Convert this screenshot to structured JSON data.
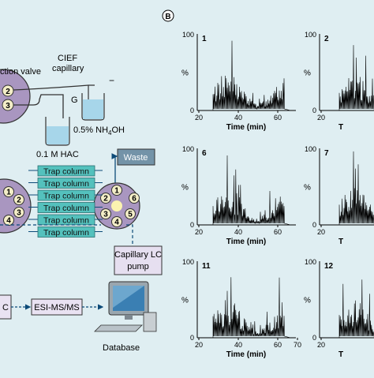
{
  "panel_b": {
    "label": "B"
  },
  "cief": {
    "valve_label": "ction valve",
    "capillary_label_1": "CIEF",
    "capillary_label_2": "capillary",
    "minus": "−",
    "g_label": "G",
    "acid_label": "0.1 M HAC",
    "base_label": "0.5% NH",
    "base_sub": "4",
    "base_suffix": "OH",
    "port_2": "2",
    "port_3": "3"
  },
  "trap": {
    "columns": [
      "Trap column",
      "Trap column",
      "Trap column",
      "Trap column",
      "Trap column",
      "Trap column"
    ],
    "waste": "Waste",
    "pump_1": "Capillary LC",
    "pump_2": "pump",
    "left_ports": [
      "1",
      "2",
      "3",
      "4"
    ],
    "right_ports": [
      "1",
      "2",
      "3",
      "4",
      "5",
      "6"
    ]
  },
  "ms": {
    "lc_fragment": "C",
    "esi": "ESI-MS/MS",
    "database": "Database"
  },
  "chromatograms": {
    "y_top": "100",
    "y_zero": "0",
    "y_unit": "%",
    "x_title": "Time (min)",
    "x_title_partial": "T",
    "panels": [
      {
        "id": "1",
        "ticks": [
          "20",
          "40",
          "60"
        ]
      },
      {
        "id": "2",
        "ticks": [
          "20"
        ]
      },
      {
        "id": "6",
        "ticks": [
          "20",
          "40",
          "60"
        ]
      },
      {
        "id": "7",
        "ticks": [
          "20"
        ]
      },
      {
        "id": "11",
        "ticks": [
          "20",
          "40",
          "60",
          "70"
        ]
      },
      {
        "id": "12",
        "ticks": [
          "20"
        ]
      }
    ]
  },
  "colors": {
    "background": "#dfeef2",
    "valve_fill": "#a996c0",
    "trap_fill": "#54c1bd",
    "waste_fill": "#7393a8",
    "pump_fill": "#e6dff0",
    "box_fill": "#e9e2f2",
    "arrow": "#0c4a78",
    "accent": "#1c3a55"
  }
}
